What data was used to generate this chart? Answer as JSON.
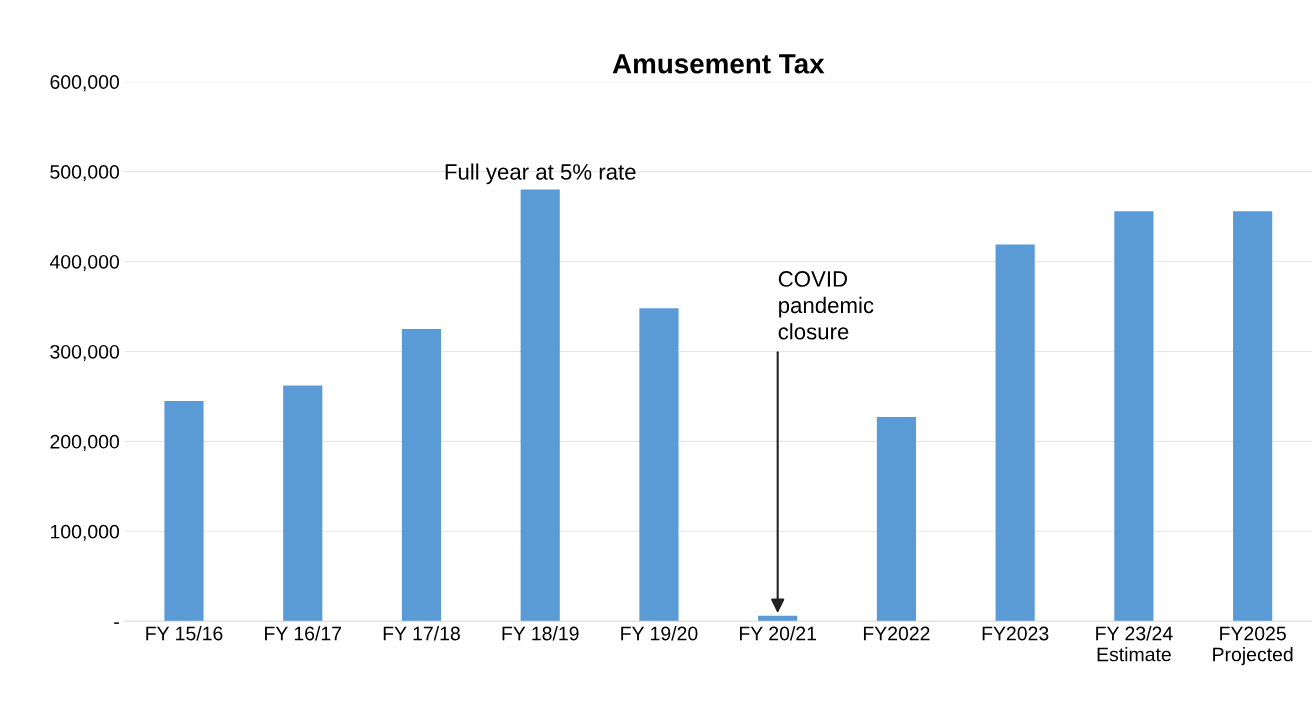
{
  "chart_data": {
    "type": "bar",
    "title": "Amusement Tax",
    "categories": [
      "FY 15/16",
      "FY 16/17",
      "FY 17/18",
      "FY 18/19",
      "FY 19/20",
      "FY 20/21",
      "FY2022",
      "FY2023",
      "FY 23/24\nEstimate",
      "FY2025\nProjected"
    ],
    "values": [
      245000,
      262000,
      325000,
      480000,
      348000,
      6000,
      227000,
      419000,
      456000,
      456000
    ],
    "color": "#5b9bd5",
    "ylim": [
      0,
      600000
    ],
    "yticks": [
      {
        "value": 0,
        "label": "-"
      },
      {
        "value": 100000,
        "label": "100,000"
      },
      {
        "value": 200000,
        "label": "200,000"
      },
      {
        "value": 300000,
        "label": "300,000"
      },
      {
        "value": 400000,
        "label": "400,000"
      },
      {
        "value": 500000,
        "label": "500,000"
      },
      {
        "value": 600000,
        "label": "600,000"
      }
    ],
    "grid": "y",
    "annotations": [
      {
        "text": "Full year at 5% rate",
        "x": "FY 18/19",
        "y": 480000
      },
      {
        "text": "COVID\npandemic\nclosure",
        "x": "FY 20/21",
        "y": 6000
      }
    ]
  }
}
